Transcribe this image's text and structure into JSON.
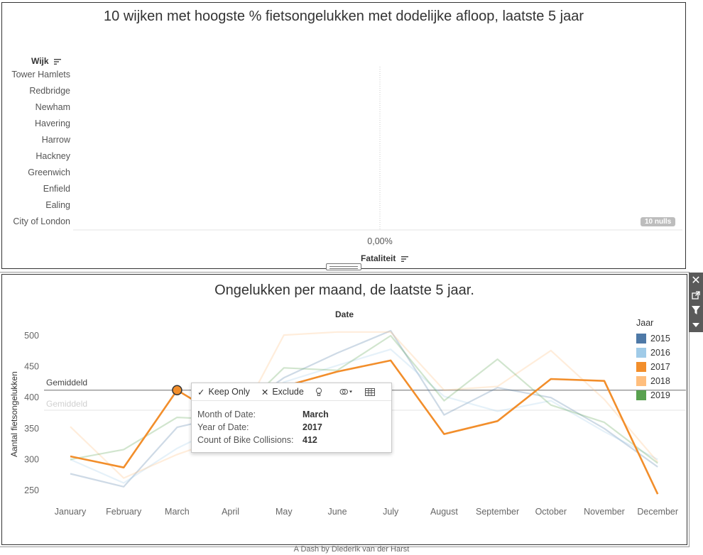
{
  "top_chart": {
    "title": "10 wijken met hoogste % fietsongelukken met dodelijke afloop, laatste 5 jaar",
    "row_header": "Wijk",
    "rows": [
      "Tower Hamlets",
      "Redbridge",
      "Newham",
      "Havering",
      "Harrow",
      "Hackney",
      "Greenwich",
      "Enfield",
      "Ealing",
      "City of London"
    ],
    "x_tick": "0,00%",
    "x_title": "Fataliteit",
    "nulls_badge": "10 nulls"
  },
  "bottom_chart": {
    "title": "Ongelukken per maand, de laatste 5 jaar.",
    "x_title": "Date",
    "y_title": "Aantal fietsongelukken",
    "reference_label": "Gemiddeld",
    "reference_label_faded": "Gemiddeld",
    "legend_title": "Jaar"
  },
  "chart_data": {
    "type": "line",
    "title": "Ongelukken per maand, de laatste 5 jaar.",
    "xlabel": "Date",
    "ylabel": "Aantal fietsongelukken",
    "categories": [
      "January",
      "February",
      "March",
      "April",
      "May",
      "June",
      "July",
      "August",
      "September",
      "October",
      "November",
      "December"
    ],
    "yticks": [
      250,
      300,
      350,
      400,
      450,
      500
    ],
    "ylim": [
      232,
      520
    ],
    "reference_value": 412,
    "highlighted_series": "2017",
    "highlighted_point": {
      "series": "2017",
      "category": "March",
      "value": 412
    },
    "series": [
      {
        "name": "2015",
        "color": "#4e79a7",
        "values": [
          277,
          256,
          352,
          372,
          432,
          472,
          508,
          372,
          416,
          400,
          350,
          288
        ]
      },
      {
        "name": "2016",
        "color": "#a0cbe8",
        "values": [
          300,
          262,
          318,
          360,
          425,
          452,
          478,
          402,
          378,
          395,
          345,
          300
        ]
      },
      {
        "name": "2017",
        "color": "#f28e2b",
        "values": [
          305,
          287,
          412,
          360,
          418,
          442,
          460,
          341,
          362,
          430,
          427,
          244
        ]
      },
      {
        "name": "2018",
        "color": "#ffbe7d",
        "values": [
          353,
          270,
          308,
          338,
          501,
          506,
          506,
          412,
          418,
          476,
          397,
          296
        ]
      },
      {
        "name": "2019",
        "color": "#59a14f",
        "values": [
          300,
          316,
          368,
          364,
          448,
          444,
          500,
          395,
          462,
          388,
          360,
          294
        ]
      }
    ]
  },
  "tooltip": {
    "keep_only": "Keep Only",
    "exclude": "Exclude",
    "rows": [
      {
        "key": "Month of Date:",
        "value": "March"
      },
      {
        "key": "Year of Date:",
        "value": "2017"
      },
      {
        "key": "Count of Bike Collisions:",
        "value": "412"
      }
    ]
  },
  "footer": "A Dash by Diederik van der Harst"
}
